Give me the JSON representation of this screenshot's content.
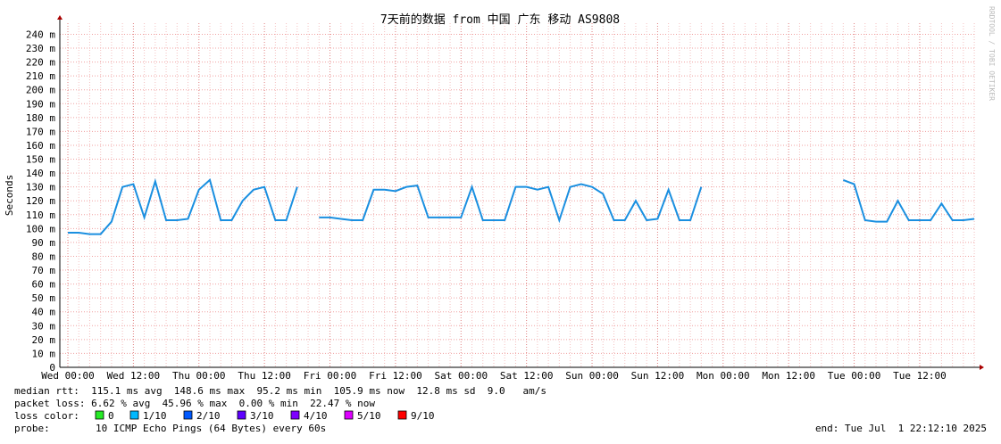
{
  "chart_data": {
    "type": "line",
    "title": "7天前的数据 from 中国 广东 移动 AS9808",
    "y_label": "Seconds",
    "watermark": "RRDTOOL / TOBI OETIKER",
    "ylim": [
      0,
      248
    ],
    "yticks": [
      0,
      {
        "value": 10,
        "label": "10 m"
      },
      {
        "value": 20,
        "label": "20 m"
      },
      {
        "value": 30,
        "label": "30 m"
      },
      {
        "value": 40,
        "label": "40 m"
      },
      {
        "value": 50,
        "label": "50 m"
      },
      {
        "value": 60,
        "label": "60 m"
      },
      {
        "value": 70,
        "label": "70 m"
      },
      {
        "value": 80,
        "label": "80 m"
      },
      {
        "value": 90,
        "label": "90 m"
      },
      {
        "value": 100,
        "label": "100 m"
      },
      {
        "value": 110,
        "label": "110 m"
      },
      {
        "value": 120,
        "label": "120 m"
      },
      {
        "value": 130,
        "label": "130 m"
      },
      {
        "value": 140,
        "label": "140 m"
      },
      {
        "value": 150,
        "label": "150 m"
      },
      {
        "value": 160,
        "label": "160 m"
      },
      {
        "value": 170,
        "label": "170 m"
      },
      {
        "value": 180,
        "label": "180 m"
      },
      {
        "value": 190,
        "label": "190 m"
      },
      {
        "value": 200,
        "label": "200 m"
      },
      {
        "value": 210,
        "label": "210 m"
      },
      {
        "value": 220,
        "label": "220 m"
      },
      {
        "value": 230,
        "label": "230 m"
      },
      {
        "value": 240,
        "label": "240 m"
      }
    ],
    "grid": true,
    "categories": [
      "Wed 00:00",
      null,
      null,
      null,
      null,
      null,
      "Wed 12:00",
      null,
      null,
      null,
      null,
      null,
      "Thu 00:00",
      null,
      null,
      null,
      null,
      null,
      "Thu 12:00",
      null,
      null,
      null,
      null,
      null,
      "Fri 00:00",
      null,
      null,
      null,
      null,
      null,
      "Fri 12:00",
      null,
      null,
      null,
      null,
      null,
      "Sat 00:00",
      null,
      null,
      null,
      null,
      null,
      "Sat 12:00",
      null,
      null,
      null,
      null,
      null,
      "Sun 00:00",
      null,
      null,
      null,
      null,
      null,
      "Sun 12:00",
      null,
      null,
      null,
      null,
      null,
      "Mon 00:00",
      null,
      null,
      null,
      null,
      null,
      "Mon 12:00",
      null,
      null,
      null,
      null,
      null,
      "Tue 00:00",
      null,
      null,
      null,
      null,
      null,
      "Tue 12:00",
      null,
      null,
      null,
      null,
      null
    ],
    "series": [
      {
        "name": "median rtt",
        "color": "#1a8fe0",
        "values": [
          97,
          97,
          96,
          96,
          105,
          130,
          132,
          108,
          134,
          106,
          106,
          107,
          128,
          135,
          106,
          106,
          120,
          128,
          130,
          106,
          106,
          130,
          null,
          108,
          108,
          107,
          106,
          106,
          128,
          128,
          127,
          130,
          131,
          108,
          108,
          108,
          108,
          130,
          106,
          106,
          106,
          130,
          130,
          128,
          130,
          106,
          130,
          132,
          130,
          125,
          106,
          106,
          120,
          106,
          107,
          128,
          106,
          106,
          130,
          null,
          null,
          null,
          null,
          null,
          null,
          null,
          null,
          null,
          null,
          null,
          null,
          135,
          132,
          106,
          105,
          105,
          120,
          106,
          106,
          106,
          118,
          106,
          106,
          107
        ]
      }
    ],
    "stats": [
      "median rtt:  115.1 ms avg  148.6 ms max  95.2 ms min  105.9 ms now  12.8 ms sd  9.0   am/s",
      "packet loss: 6.62 % avg  45.96 % max  0.00 % min  22.47 % now"
    ],
    "loss_label": "loss color:",
    "loss_colors": [
      {
        "label": "0",
        "color": "#26ea26"
      },
      {
        "label": "1/10",
        "color": "#00b8ff"
      },
      {
        "label": "2/10",
        "color": "#0059ff"
      },
      {
        "label": "3/10",
        "color": "#5e00ff"
      },
      {
        "label": "4/10",
        "color": "#7e00ff"
      },
      {
        "label": "5/10",
        "color": "#dd00ff"
      },
      {
        "label": "9/10",
        "color": "#ff0000"
      }
    ],
    "probe_label": "probe:",
    "probe": "10 ICMP Echo Pings (64 Bytes) every 60s",
    "end": "end: Tue Jul  1 22:12:10 2025"
  }
}
